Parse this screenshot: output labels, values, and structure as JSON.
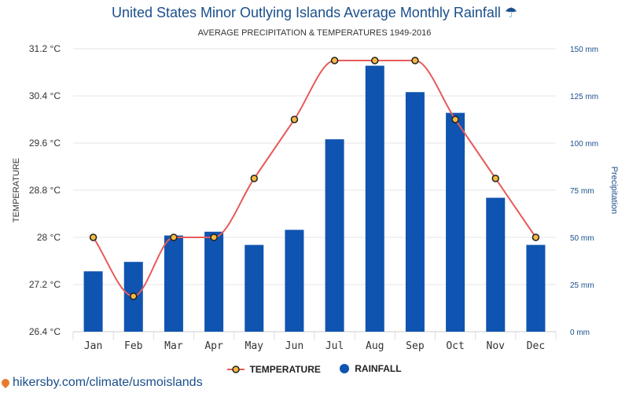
{
  "header": {
    "title": "United States Minor Outlying Islands Average Monthly Rainfall",
    "umbrella": "☂",
    "subtitle": "AVERAGE PRECIPITATION & TEMPERATURES 1949-2016"
  },
  "legend": {
    "temperature": "TEMPERATURE",
    "rainfall": "RAINFALL"
  },
  "footer": {
    "url": "hikersby.com/climate/usmoislands"
  },
  "colors": {
    "bar": "#0f54b0",
    "line": "#e85a5a",
    "point_fill": "#f4b942",
    "title": "#1a4f8b",
    "right_axis": "#1a4f8b"
  },
  "chart_data": {
    "type": "bar",
    "categories": [
      "Jan",
      "Feb",
      "Mar",
      "Apr",
      "May",
      "Jun",
      "Jul",
      "Aug",
      "Sep",
      "Oct",
      "Nov",
      "Dec"
    ],
    "series": [
      {
        "name": "TEMPERATURE",
        "type": "line",
        "axis": "left",
        "values": [
          28.0,
          27.0,
          28.0,
          28.0,
          29.0,
          30.0,
          31.0,
          31.0,
          31.0,
          30.0,
          29.0,
          28.0
        ]
      },
      {
        "name": "RAINFALL",
        "type": "bar",
        "axis": "right",
        "values": [
          32,
          37,
          51,
          53,
          46,
          54,
          102,
          141,
          127,
          116,
          71,
          46
        ]
      }
    ],
    "left_axis": {
      "label": "TEMPERATURE",
      "range": [
        26.4,
        31.2
      ],
      "ticks": [
        "26.4 °C",
        "27.2 °C",
        "28 °C",
        "28.8 °C",
        "29.6 °C",
        "30.4 °C",
        "31.2 °C"
      ]
    },
    "right_axis": {
      "label": "Precipitation",
      "range": [
        0,
        150
      ],
      "ticks": [
        "0 mm",
        "25 mm",
        "50 mm",
        "75 mm",
        "100 mm",
        "125 mm",
        "150 mm"
      ]
    },
    "grid": true,
    "legend_position": "bottom"
  }
}
